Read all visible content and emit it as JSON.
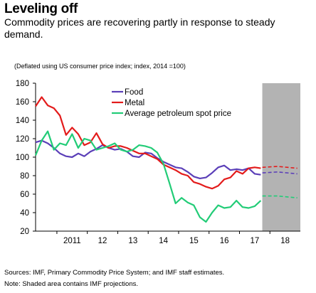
{
  "header": {
    "title": "Leveling off",
    "subtitle": "Commodity prices are recovering partly in response to steady demand.",
    "note": "(Deflated using US consumer price index; index, 2014 =100)"
  },
  "footer": {
    "sources": "Sources: IMF, Primary Commodity Price System; and IMF staff estimates.",
    "note": "Note: Shaded area contains IMF projections."
  },
  "chart_data": {
    "type": "line",
    "ylim": [
      20,
      180
    ],
    "yticks": [
      20,
      40,
      60,
      80,
      100,
      120,
      140,
      160,
      180
    ],
    "xlim": [
      2010.3,
      2019.0
    ],
    "xtick_labels": [
      {
        "x": 2011.5,
        "label": "2011"
      },
      {
        "x": 2012.5,
        "label": "12"
      },
      {
        "x": 2013.5,
        "label": "13"
      },
      {
        "x": 2014.5,
        "label": "14"
      },
      {
        "x": 2015.5,
        "label": "15"
      },
      {
        "x": 2016.5,
        "label": "16"
      },
      {
        "x": 2017.5,
        "label": "17"
      },
      {
        "x": 2018.5,
        "label": "18"
      }
    ],
    "projection_shade": [
      2017.75,
      2019.0
    ],
    "legend": [
      "Food",
      "Metal",
      "Average petroleum spot price"
    ],
    "colors": {
      "Food": "#5b3fb8",
      "Metal": "#e31b1b",
      "Average petroleum spot price": "#22cc77",
      "shade": "#b3b3b3"
    },
    "series": [
      {
        "name": "Food",
        "x": [
          2010.3,
          2010.5,
          2010.7,
          2010.9,
          2011.1,
          2011.3,
          2011.5,
          2011.7,
          2011.9,
          2012.1,
          2012.3,
          2012.5,
          2012.7,
          2012.9,
          2013.1,
          2013.3,
          2013.5,
          2013.7,
          2013.9,
          2014.1,
          2014.3,
          2014.5,
          2014.7,
          2014.9,
          2015.1,
          2015.3,
          2015.5,
          2015.7,
          2015.9,
          2016.1,
          2016.3,
          2016.5,
          2016.7,
          2016.9,
          2017.1,
          2017.3,
          2017.5,
          2017.7
        ],
        "y": [
          116,
          118,
          115,
          110,
          104,
          101,
          100,
          104,
          101,
          106,
          109,
          113,
          110,
          108,
          109,
          106,
          101,
          100,
          105,
          104,
          99,
          95,
          92,
          89,
          88,
          84,
          79,
          77,
          78,
          83,
          89,
          91,
          86,
          87,
          86,
          88,
          82,
          81
        ]
      },
      {
        "name": "Metal",
        "x": [
          2010.3,
          2010.5,
          2010.7,
          2010.9,
          2011.1,
          2011.3,
          2011.5,
          2011.7,
          2011.9,
          2012.1,
          2012.3,
          2012.5,
          2012.7,
          2012.9,
          2013.1,
          2013.3,
          2013.5,
          2013.7,
          2013.9,
          2014.1,
          2014.3,
          2014.5,
          2014.7,
          2014.9,
          2015.1,
          2015.3,
          2015.5,
          2015.7,
          2015.9,
          2016.1,
          2016.3,
          2016.5,
          2016.7,
          2016.9,
          2017.1,
          2017.3,
          2017.5,
          2017.7
        ],
        "y": [
          155,
          165,
          156,
          153,
          145,
          124,
          132,
          125,
          113,
          116,
          126,
          114,
          110,
          112,
          112,
          110,
          107,
          104,
          104,
          101,
          98,
          92,
          89,
          86,
          82,
          80,
          73,
          71,
          68,
          66,
          69,
          76,
          78,
          85,
          82,
          88,
          89,
          88
        ]
      },
      {
        "name": "Average petroleum spot price",
        "x": [
          2010.3,
          2010.5,
          2010.7,
          2010.9,
          2011.1,
          2011.3,
          2011.5,
          2011.7,
          2011.9,
          2012.1,
          2012.3,
          2012.5,
          2012.7,
          2012.9,
          2013.1,
          2013.3,
          2013.5,
          2013.7,
          2013.9,
          2014.1,
          2014.3,
          2014.5,
          2014.7,
          2014.9,
          2015.1,
          2015.3,
          2015.5,
          2015.7,
          2015.9,
          2016.1,
          2016.3,
          2016.5,
          2016.7,
          2016.9,
          2017.1,
          2017.3,
          2017.5,
          2017.7
        ],
        "y": [
          102,
          118,
          128,
          108,
          115,
          113,
          125,
          110,
          120,
          118,
          108,
          110,
          112,
          115,
          108,
          106,
          108,
          113,
          112,
          110,
          105,
          93,
          72,
          50,
          56,
          51,
          48,
          35,
          30,
          40,
          48,
          45,
          46,
          53,
          46,
          45,
          47,
          53
        ]
      }
    ],
    "projections": [
      {
        "name": "Food",
        "x": [
          2017.75,
          2018.25,
          2018.9
        ],
        "y": [
          83,
          84,
          82
        ]
      },
      {
        "name": "Metal",
        "x": [
          2017.75,
          2018.25,
          2018.9
        ],
        "y": [
          89,
          90,
          88
        ]
      },
      {
        "name": "Average petroleum spot price",
        "x": [
          2017.75,
          2018.25,
          2018.9
        ],
        "y": [
          58,
          58,
          56
        ]
      }
    ]
  }
}
